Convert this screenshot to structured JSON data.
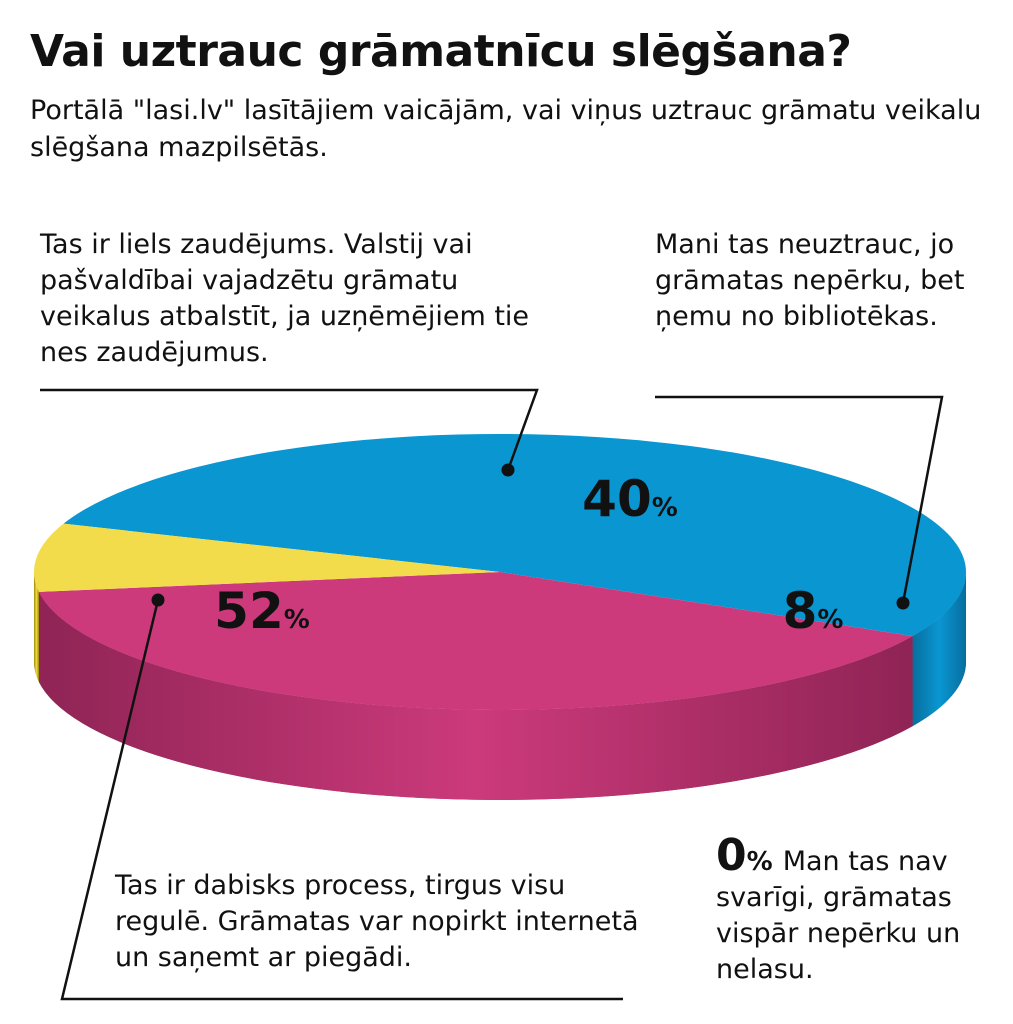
{
  "title": "Vai uztrauc grāmatnīcu slēgšana?",
  "subtitle": "Portālā \"lasi.lv\" lasītājiem vaicājām, vai viņus uztrauc grāmatu veikalu slēgšana mazpilsētās.",
  "chart_data": {
    "type": "pie",
    "three_d": true,
    "unit": "%",
    "slices": [
      {
        "value": 52,
        "label": "Tas ir dabisks process, tirgus visu regulē. Grāmatas var nopirkt internetā un saņemt ar piegādi.",
        "color": "#0a96d1",
        "side_color": "#076e9e"
      },
      {
        "value": 40,
        "label": "Tas ir liels zaudējums. Valstij vai pašvaldībai vajadzētu grāmatu veikalus atbalstīt, ja uzņēmējiem tie nes zaudējumus.",
        "color": "#cc3a7b",
        "side_color": "#8f2455"
      },
      {
        "value": 8,
        "label": "Mani tas neuztrauc, jo grāmatas nepērku, bet ņemu no bibliotēkas.",
        "color": "#f2dc4c",
        "side_color": "#9c8a00"
      },
      {
        "value": 0,
        "label": "Man tas nav svarīgi, grāmatas vispār nepērku un nelasu.",
        "color": "#888888",
        "side_color": "#666666"
      }
    ]
  },
  "colors": {
    "leader": "#111111",
    "text": "#111111"
  }
}
